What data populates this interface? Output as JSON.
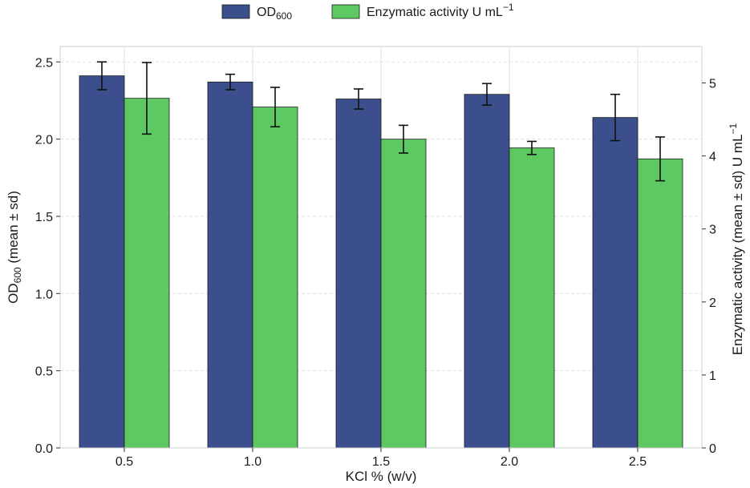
{
  "chart_data": {
    "type": "bar",
    "categories": [
      "0.5",
      "1.0",
      "1.5",
      "2.0",
      "2.5"
    ],
    "xlabel": "KCl % (w/v)",
    "ylabel_left": {
      "base": "OD",
      "sub": "600",
      "rest": " (mean ± sd)"
    },
    "ylabel_right": {
      "base": "Enzymatic activity (mean ± sd) U mL",
      "sup": "−1"
    },
    "ylim_left": [
      0,
      2.6
    ],
    "ylim_right": [
      0,
      5.5
    ],
    "yticks_left": [
      "0.0",
      "0.5",
      "1.0",
      "1.5",
      "2.0",
      "2.5"
    ],
    "yticks_right": [
      "0",
      "1",
      "2",
      "3",
      "4",
      "5"
    ],
    "grid": true,
    "legend_position": "top-center",
    "series": [
      {
        "legend_base": "OD",
        "legend_sub": "600",
        "legend_sup": "",
        "axis": "left",
        "color": "#3b4f8c",
        "values": [
          2.41,
          2.37,
          2.26,
          2.29,
          2.14
        ],
        "errors": [
          0.09,
          0.05,
          0.065,
          0.07,
          0.15
        ]
      },
      {
        "legend_base": "Enzymatic activity U mL",
        "legend_sub": "",
        "legend_sup": "−1",
        "axis": "right",
        "color": "#5ec962",
        "values": [
          4.79,
          4.67,
          4.23,
          4.11,
          3.96
        ],
        "errors": [
          0.49,
          0.27,
          0.19,
          0.09,
          0.3
        ]
      }
    ]
  }
}
